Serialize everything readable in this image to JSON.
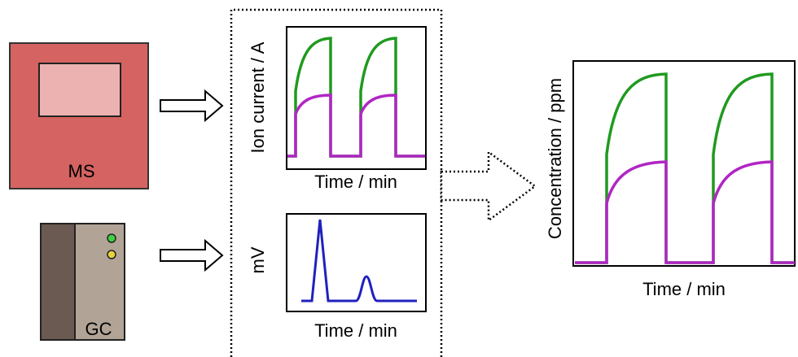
{
  "devices": {
    "ms": {
      "label": "MS"
    },
    "gc": {
      "label": "GC"
    }
  },
  "panels": [
    {
      "y_label": "Ion current / A",
      "x_label": "Time / min"
    },
    {
      "y_label": "mV",
      "x_label": "Time / min"
    },
    {
      "y_label": "Concentration / ppm",
      "x_label": "Time / min"
    }
  ]
}
